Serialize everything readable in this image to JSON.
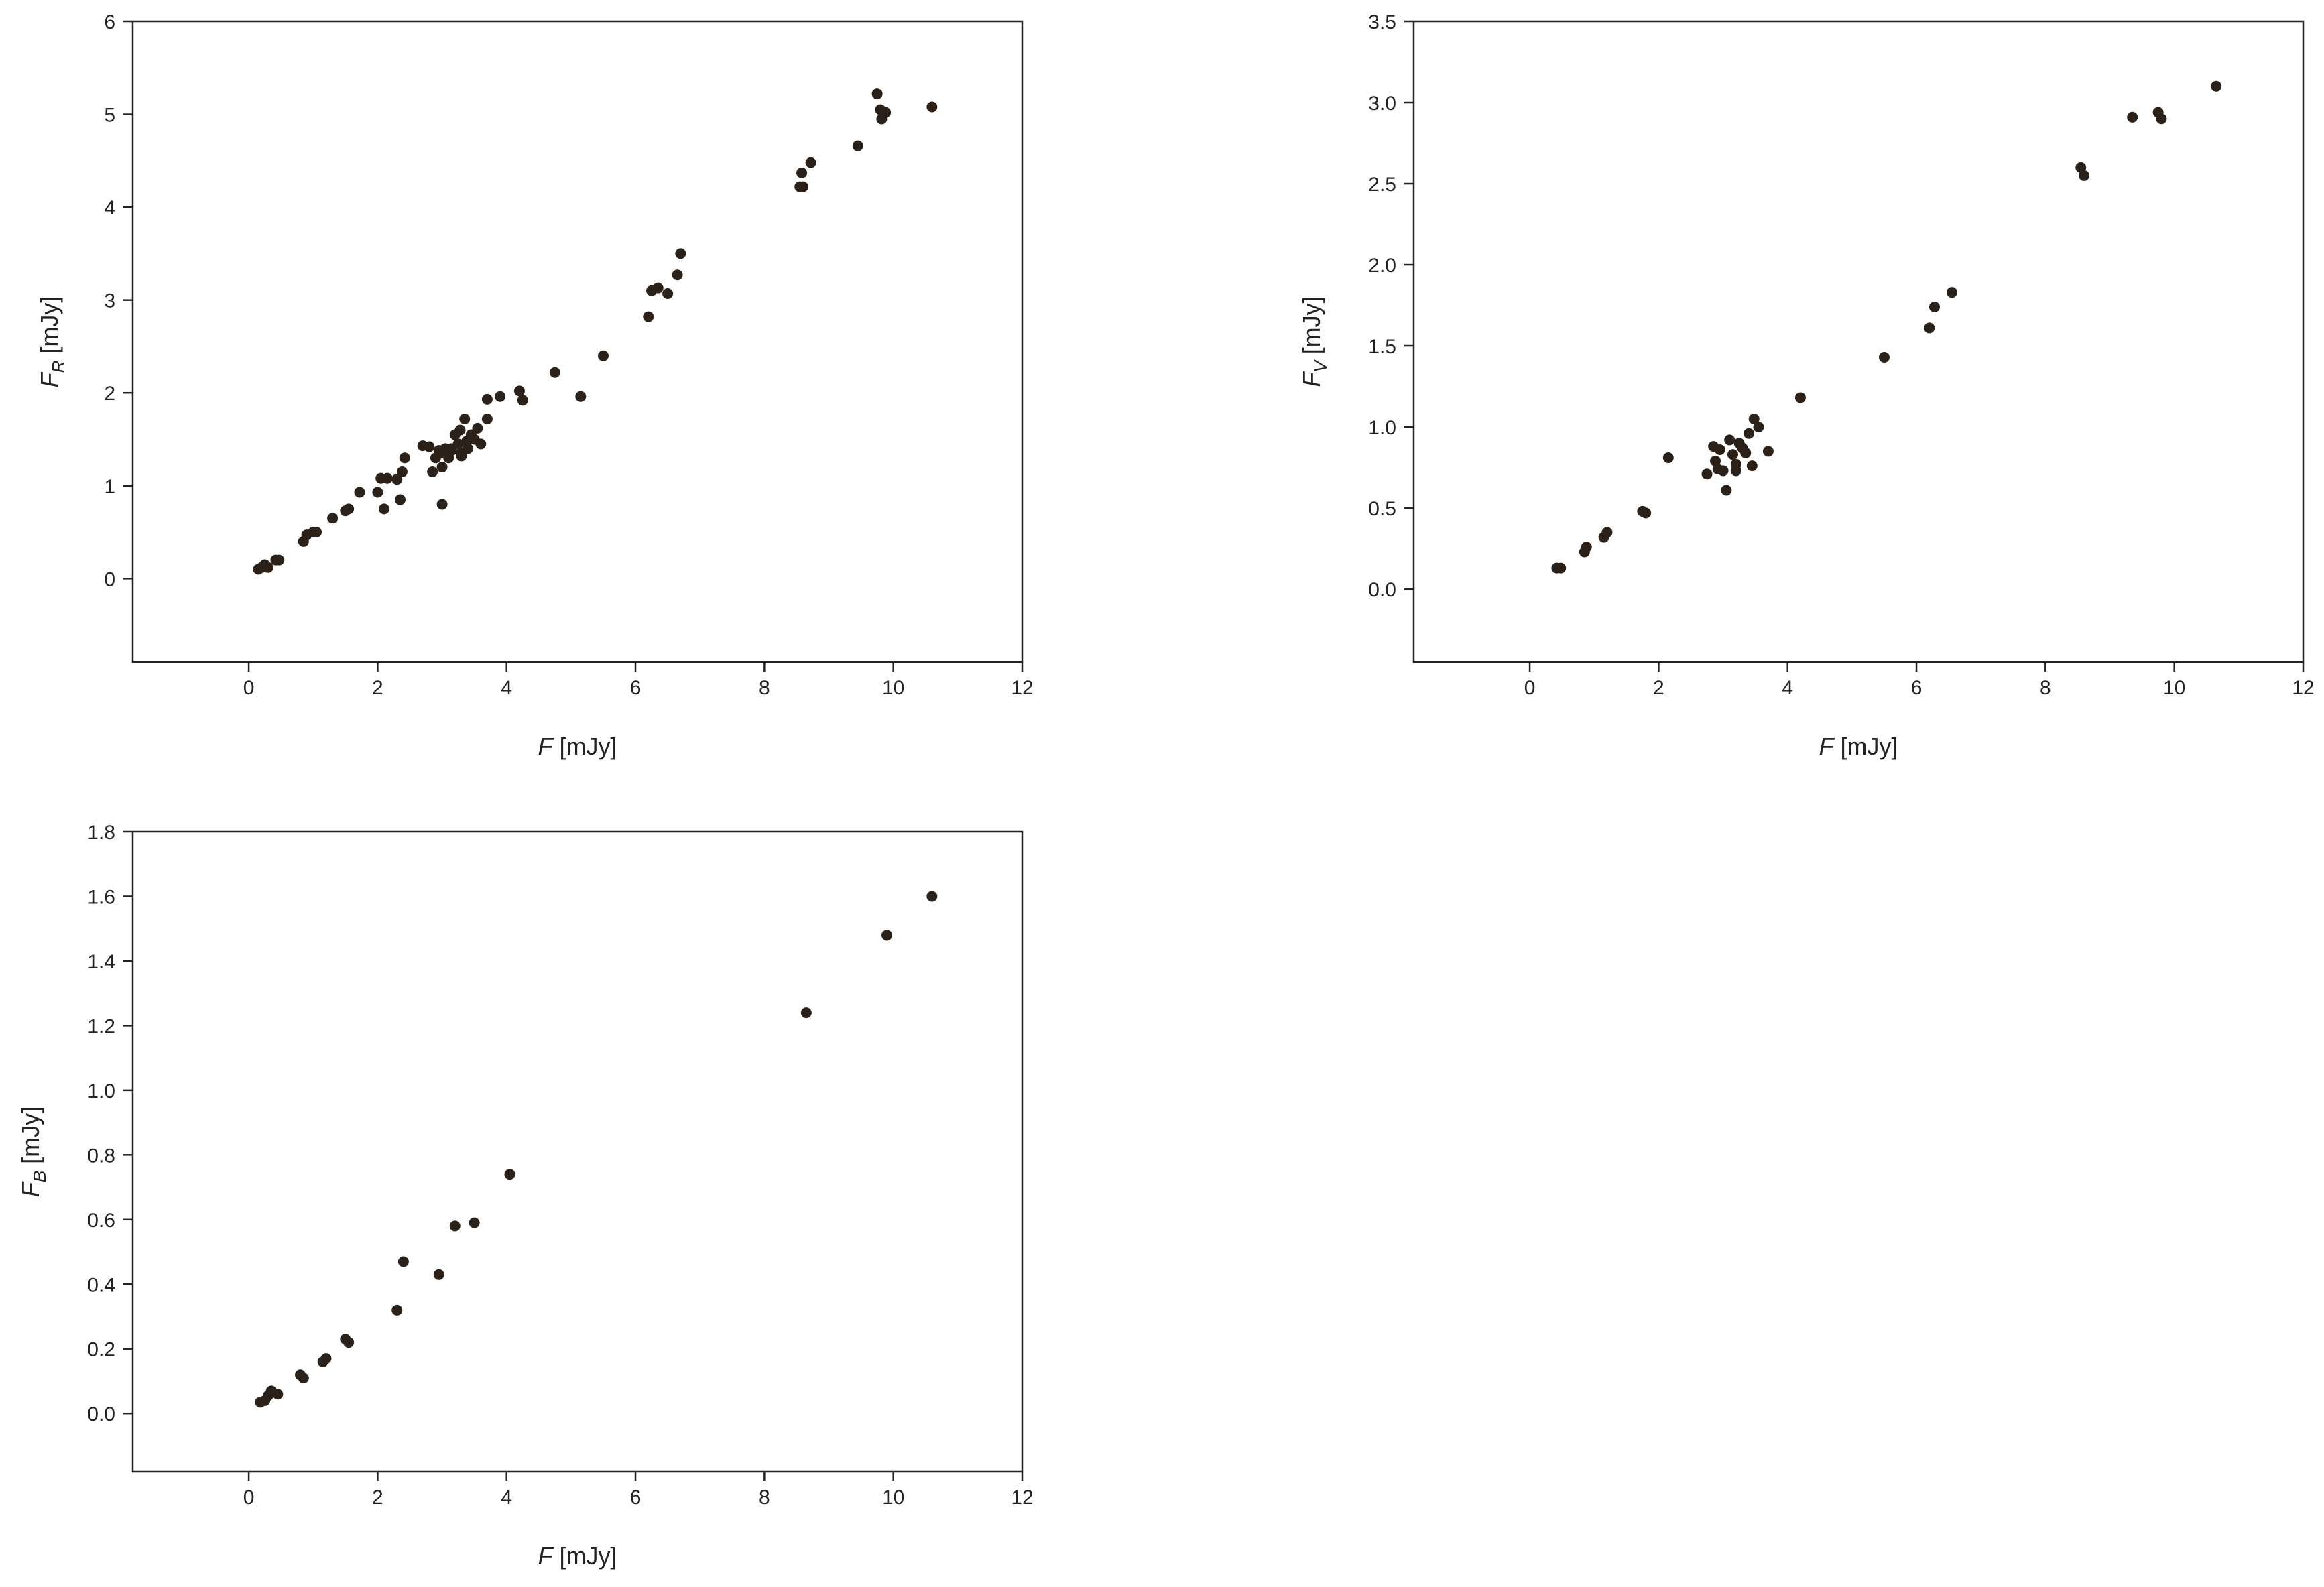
{
  "chart_data": [
    {
      "id": "panel-fr",
      "type": "scatter",
      "title": "",
      "xlabel": {
        "main": "F",
        "sub": "",
        "unit": "[mJy]"
      },
      "ylabel": {
        "main": "F",
        "sub": "R",
        "unit": "[mJy]"
      },
      "xlim": [
        -1.8,
        12
      ],
      "ylim": [
        -0.9,
        6
      ],
      "xticks": [
        0,
        2,
        4,
        6,
        8,
        10,
        12
      ],
      "yticks": [
        0,
        1,
        2,
        3,
        4,
        5,
        6
      ],
      "ytick_labels": [
        "0",
        "1",
        "2",
        "3",
        "4",
        "5",
        "6"
      ],
      "grid": false,
      "marker_color": "#2b2118",
      "points": [
        [
          0.15,
          0.1
        ],
        [
          0.2,
          0.12
        ],
        [
          0.25,
          0.15
        ],
        [
          0.3,
          0.12
        ],
        [
          0.42,
          0.2
        ],
        [
          0.47,
          0.2
        ],
        [
          0.85,
          0.4
        ],
        [
          0.9,
          0.47
        ],
        [
          1.0,
          0.5
        ],
        [
          1.05,
          0.5
        ],
        [
          1.3,
          0.65
        ],
        [
          1.5,
          0.73
        ],
        [
          1.55,
          0.75
        ],
        [
          1.72,
          0.93
        ],
        [
          2.0,
          0.93
        ],
        [
          2.05,
          1.08
        ],
        [
          2.1,
          0.75
        ],
        [
          2.15,
          1.08
        ],
        [
          2.3,
          1.07
        ],
        [
          2.35,
          0.85
        ],
        [
          2.38,
          1.15
        ],
        [
          2.42,
          1.3
        ],
        [
          2.7,
          1.43
        ],
        [
          2.8,
          1.42
        ],
        [
          2.85,
          1.15
        ],
        [
          2.9,
          1.3
        ],
        [
          2.95,
          1.38
        ],
        [
          3.0,
          1.35
        ],
        [
          3.0,
          1.2
        ],
        [
          3.05,
          1.4
        ],
        [
          3.0,
          0.8
        ],
        [
          3.1,
          1.3
        ],
        [
          3.15,
          1.4
        ],
        [
          3.2,
          1.55
        ],
        [
          3.25,
          1.45
        ],
        [
          3.28,
          1.6
        ],
        [
          3.3,
          1.35
        ],
        [
          3.35,
          1.72
        ],
        [
          3.38,
          1.48
        ],
        [
          3.4,
          1.4
        ],
        [
          3.45,
          1.55
        ],
        [
          3.5,
          1.5
        ],
        [
          3.55,
          1.62
        ],
        [
          3.6,
          1.45
        ],
        [
          3.15,
          1.38
        ],
        [
          3.3,
          1.32
        ],
        [
          3.7,
          1.72
        ],
        [
          3.7,
          1.93
        ],
        [
          3.9,
          1.96
        ],
        [
          4.2,
          2.02
        ],
        [
          4.25,
          1.92
        ],
        [
          4.75,
          2.22
        ],
        [
          5.15,
          1.96
        ],
        [
          5.5,
          2.4
        ],
        [
          6.2,
          2.82
        ],
        [
          6.25,
          3.1
        ],
        [
          6.35,
          3.13
        ],
        [
          6.5,
          3.07
        ],
        [
          6.65,
          3.27
        ],
        [
          6.7,
          3.5
        ],
        [
          8.55,
          4.22
        ],
        [
          8.58,
          4.37
        ],
        [
          8.6,
          4.22
        ],
        [
          8.72,
          4.48
        ],
        [
          9.45,
          4.66
        ],
        [
          9.75,
          5.22
        ],
        [
          9.8,
          5.05
        ],
        [
          9.82,
          4.95
        ],
        [
          9.88,
          5.02
        ],
        [
          10.6,
          5.08
        ]
      ]
    },
    {
      "id": "panel-fv",
      "type": "scatter",
      "title": "",
      "xlabel": {
        "main": "F",
        "sub": "",
        "unit": "[mJy]"
      },
      "ylabel": {
        "main": "F",
        "sub": "V",
        "unit": "[mJy]"
      },
      "xlim": [
        -1.8,
        12
      ],
      "ylim": [
        -0.45,
        3.5
      ],
      "xticks": [
        0,
        2,
        4,
        6,
        8,
        10,
        12
      ],
      "yticks": [
        0,
        0.5,
        1,
        1.5,
        2,
        2.5,
        3,
        3.5
      ],
      "ytick_labels": [
        "0.0",
        "0.5",
        "1.0",
        "1.5",
        "2.0",
        "2.5",
        "3.0",
        "3.5"
      ],
      "grid": false,
      "marker_color": "#2b2118",
      "points": [
        [
          0.42,
          0.13
        ],
        [
          0.48,
          0.13
        ],
        [
          0.85,
          0.23
        ],
        [
          0.88,
          0.26
        ],
        [
          1.15,
          0.32
        ],
        [
          1.2,
          0.35
        ],
        [
          1.75,
          0.48
        ],
        [
          1.8,
          0.47
        ],
        [
          2.15,
          0.81
        ],
        [
          2.75,
          0.71
        ],
        [
          2.85,
          0.88
        ],
        [
          2.88,
          0.79
        ],
        [
          2.92,
          0.74
        ],
        [
          2.95,
          0.86
        ],
        [
          3.0,
          0.73
        ],
        [
          3.05,
          0.61
        ],
        [
          3.1,
          0.92
        ],
        [
          3.15,
          0.83
        ],
        [
          3.2,
          0.77
        ],
        [
          3.25,
          0.9
        ],
        [
          3.3,
          0.87
        ],
        [
          3.35,
          0.84
        ],
        [
          3.4,
          0.96
        ],
        [
          3.45,
          0.76
        ],
        [
          3.48,
          1.05
        ],
        [
          3.55,
          1.0
        ],
        [
          3.7,
          0.85
        ],
        [
          3.2,
          0.73
        ],
        [
          4.2,
          1.18
        ],
        [
          5.5,
          1.43
        ],
        [
          6.2,
          1.61
        ],
        [
          6.28,
          1.74
        ],
        [
          6.55,
          1.83
        ],
        [
          8.55,
          2.6
        ],
        [
          8.6,
          2.55
        ],
        [
          9.35,
          2.91
        ],
        [
          9.75,
          2.94
        ],
        [
          9.8,
          2.9
        ],
        [
          10.65,
          3.1
        ]
      ]
    },
    {
      "id": "panel-fb",
      "type": "scatter",
      "title": "",
      "xlabel": {
        "main": "F",
        "sub": "",
        "unit": "[mJy]"
      },
      "ylabel": {
        "main": "F",
        "sub": "B",
        "unit": "[mJy]"
      },
      "xlim": [
        -1.8,
        12
      ],
      "ylim": [
        -0.18,
        1.8
      ],
      "xticks": [
        0,
        2,
        4,
        6,
        8,
        10,
        12
      ],
      "yticks": [
        0,
        0.2,
        0.4,
        0.6,
        0.8,
        1.0,
        1.2,
        1.4,
        1.6,
        1.8
      ],
      "ytick_labels": [
        "0.0",
        "0.2",
        "0.4",
        "0.6",
        "0.8",
        "1.0",
        "1.2",
        "1.4",
        "1.6",
        "1.8"
      ],
      "grid": false,
      "marker_color": "#2b2118",
      "points": [
        [
          0.18,
          0.035
        ],
        [
          0.25,
          0.04
        ],
        [
          0.3,
          0.055
        ],
        [
          0.35,
          0.07
        ],
        [
          0.45,
          0.06
        ],
        [
          0.8,
          0.12
        ],
        [
          0.85,
          0.11
        ],
        [
          1.15,
          0.16
        ],
        [
          1.2,
          0.17
        ],
        [
          1.5,
          0.23
        ],
        [
          1.55,
          0.22
        ],
        [
          2.3,
          0.32
        ],
        [
          2.4,
          0.47
        ],
        [
          2.95,
          0.43
        ],
        [
          3.2,
          0.58
        ],
        [
          3.5,
          0.59
        ],
        [
          4.05,
          0.74
        ],
        [
          8.65,
          1.24
        ],
        [
          9.9,
          1.48
        ],
        [
          10.6,
          1.6
        ]
      ]
    }
  ]
}
